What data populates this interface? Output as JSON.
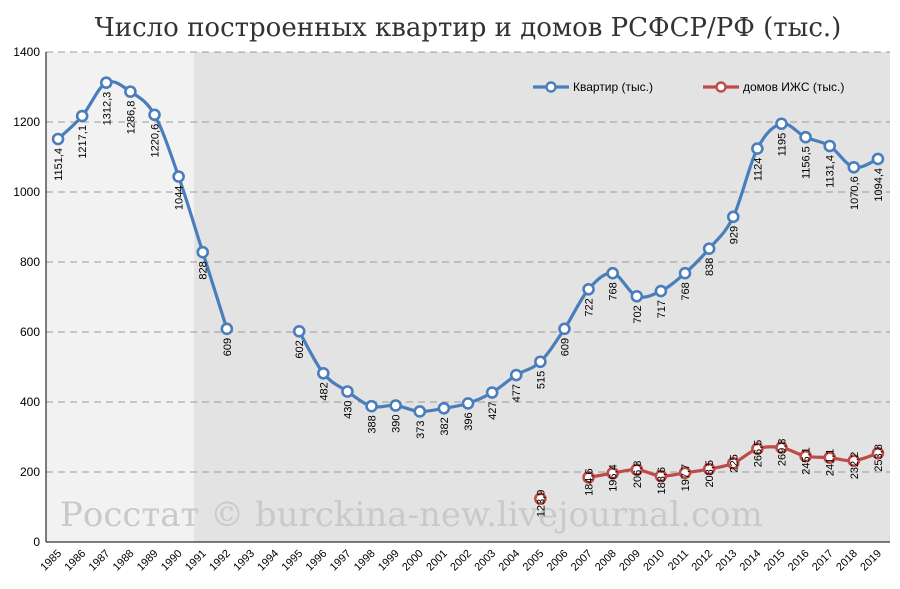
{
  "chart_data": {
    "type": "line",
    "title": "Число построенных квартир и домов РСФСР/РФ (тыс.)",
    "watermark": "Росстат © burckina-new.livejournal.com",
    "xlabel": "",
    "ylabel": "",
    "ylim": [
      0,
      1400
    ],
    "yticks": [
      "0",
      "200",
      "400",
      "600",
      "800",
      "1000",
      "1200",
      "1400"
    ],
    "grid": true,
    "legend_position": "top-right",
    "x": [
      "1985",
      "1986",
      "1987",
      "1988",
      "1989",
      "1990",
      "1991",
      "1992",
      "1993",
      "1994",
      "1995",
      "1996",
      "1997",
      "1998",
      "1999",
      "2000",
      "2001",
      "2002",
      "2003",
      "2004",
      "2005",
      "2006",
      "2007",
      "2008",
      "2009",
      "2010",
      "2011",
      "2012",
      "2013",
      "2014",
      "2015",
      "2016",
      "2017",
      "2018",
      "2019"
    ],
    "series": [
      {
        "name": "Квартир (тыс.)",
        "color": "#4a7ebb",
        "values": [
          1151.4,
          1217.1,
          1312.3,
          1286.8,
          1220.6,
          1044,
          828,
          609,
          null,
          null,
          602,
          482,
          430,
          388,
          390,
          373,
          382,
          396,
          427,
          477,
          515,
          609,
          722,
          768,
          702,
          717,
          768,
          838,
          929,
          1124,
          1195,
          1156.5,
          1131.4,
          1070.6,
          1094.4
        ],
        "labels": [
          "1151,4",
          "1217,1",
          "1312,3",
          "1286,8",
          "1220,6",
          "1044",
          "828",
          "609",
          "",
          "",
          "602",
          "482",
          "430",
          "388",
          "390",
          "373",
          "382",
          "396",
          "427",
          "477",
          "515",
          "609",
          "722",
          "768",
          "702",
          "717",
          "768",
          "838",
          "929",
          "1124",
          "1195",
          "1156,5",
          "1131,4",
          "1070,6",
          "1094,4"
        ]
      },
      {
        "name": "домов ИЖС (тыс.)",
        "color": "#be4b48",
        "values": [
          null,
          null,
          null,
          null,
          null,
          null,
          null,
          null,
          null,
          null,
          null,
          null,
          null,
          null,
          null,
          null,
          null,
          null,
          null,
          null,
          123.9,
          null,
          184.6,
          196.4,
          206.8,
          188.6,
          197.7,
          208.5,
          225,
          266.5,
          269.8,
          245.1,
          241.1,
          232.2,
          253.8
        ],
        "labels": [
          "",
          "",
          "",
          "",
          "",
          "",
          "",
          "",
          "",
          "",
          "",
          "",
          "",
          "",
          "",
          "",
          "",
          "",
          "",
          "",
          "123,9",
          "",
          "184,6",
          "196,4",
          "206,8",
          "188,6",
          "197,7",
          "208,5",
          "225",
          "266,5",
          "269,8",
          "245,1",
          "241,1",
          "232,2",
          "253,8"
        ]
      }
    ]
  }
}
